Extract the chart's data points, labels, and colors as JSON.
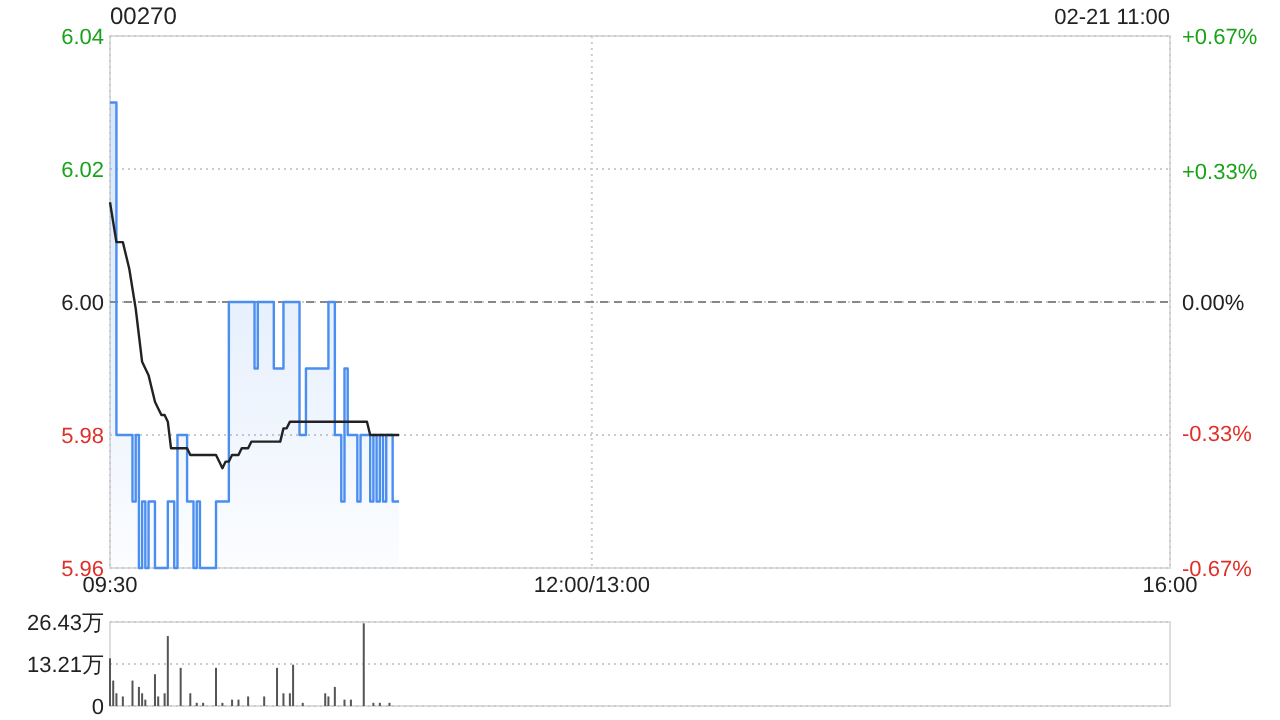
{
  "chart_data": [
    {
      "type": "area",
      "title": "00270",
      "subtitle": "02-21 11:00",
      "categories": [
        "09:30",
        null,
        null,
        null,
        null,
        null,
        null,
        null,
        null,
        null,
        null,
        null,
        null,
        null,
        null,
        null,
        null,
        null,
        null,
        null,
        null,
        null,
        null,
        null,
        null,
        null,
        null,
        null,
        null,
        null,
        null,
        null,
        null,
        null,
        null,
        null,
        null,
        null,
        null,
        null,
        null,
        null,
        null,
        null,
        null,
        null,
        null,
        null,
        null,
        null,
        null,
        null,
        null,
        null,
        null,
        null,
        null,
        null,
        null,
        null,
        null,
        null,
        null,
        null,
        null,
        null,
        null,
        null,
        null,
        null,
        null,
        null,
        null,
        null,
        null,
        null,
        null,
        null,
        null,
        null,
        null,
        null,
        null,
        null,
        null,
        null,
        null,
        null,
        null,
        null,
        null,
        null,
        null,
        null,
        null,
        null,
        null,
        null,
        null,
        null,
        null,
        null,
        null,
        null,
        null,
        null,
        null,
        null,
        null,
        null,
        null,
        null,
        null,
        null,
        null,
        null,
        null,
        null,
        null,
        null,
        null,
        null,
        null,
        null,
        null,
        null,
        null,
        null,
        null,
        null,
        null,
        null,
        null,
        null,
        null,
        null,
        null,
        null,
        null,
        null,
        null,
        null,
        null,
        null,
        null,
        null,
        null,
        null,
        null,
        null,
        "12:00/13:00",
        null,
        null,
        null,
        null,
        null,
        null,
        null,
        null,
        null,
        null,
        null,
        null,
        null,
        null,
        null,
        null,
        null,
        null,
        null,
        null,
        null,
        null,
        null,
        null,
        null,
        null,
        null,
        null,
        null,
        null,
        null,
        null,
        null,
        null,
        null,
        null,
        null,
        null,
        null,
        null,
        null,
        null,
        null,
        null,
        null,
        null,
        null,
        null,
        null,
        null,
        null,
        null,
        null,
        null,
        null,
        null,
        null,
        null,
        null,
        null,
        null,
        null,
        null,
        null,
        null,
        null,
        null,
        null,
        null,
        null,
        null,
        null,
        null,
        null,
        null,
        null,
        null,
        null,
        null,
        null,
        null,
        null,
        null,
        null,
        null,
        null,
        null,
        null,
        null,
        null,
        null,
        null,
        null,
        null,
        null,
        null,
        null,
        null,
        null,
        null,
        null,
        null,
        null,
        null,
        null,
        null,
        null,
        null,
        null,
        null,
        null,
        null,
        null,
        null,
        null,
        null,
        null,
        null,
        null,
        null,
        null,
        null,
        null,
        null,
        null,
        null,
        null,
        null,
        null,
        null,
        null,
        null,
        null,
        null,
        null,
        null,
        null,
        null,
        null,
        null,
        null,
        null,
        null,
        null,
        null,
        null,
        null,
        null,
        null,
        null,
        null,
        null,
        null,
        null,
        null,
        null,
        null,
        null,
        null,
        null,
        null,
        null,
        null,
        null,
        null,
        null,
        null,
        null,
        null,
        null,
        null,
        null,
        null,
        null,
        null,
        null,
        null,
        null,
        null,
        "16:00"
      ],
      "ylim": [
        5.96,
        6.04
      ],
      "yticks": [
        {
          "value": 5.96,
          "label": "5.96"
        },
        {
          "value": 5.98,
          "label": "5.98"
        },
        {
          "value": 6.0,
          "label": "6.00"
        },
        {
          "value": 6.02,
          "label": "6.02"
        },
        {
          "value": 6.04,
          "label": "6.04"
        }
      ],
      "y2lim": [
        -0.67,
        0.67
      ],
      "y2ticks": [
        {
          "value": -0.67,
          "label": "-0.67%"
        },
        {
          "value": -0.33,
          "label": "-0.33%"
        },
        {
          "value": 0,
          "label": "0.00%"
        },
        {
          "value": 0.33,
          "label": "+0.33%"
        },
        {
          "value": 0.67,
          "label": "+0.67%"
        }
      ],
      "grid": true,
      "ref_lines": [
        {
          "axis": "y",
          "value": 6.0,
          "color": "#888888",
          "line_style": "dashed"
        }
      ],
      "series": [
        {
          "color": "#4a8ef0",
          "values": [
            6.03,
            6.03,
            5.98,
            5.98,
            5.98,
            5.98,
            5.98,
            5.97,
            5.98,
            5.96,
            5.97,
            5.96,
            5.97,
            5.97,
            5.96,
            5.96,
            5.96,
            5.96,
            5.97,
            5.97,
            5.96,
            5.98,
            5.98,
            5.98,
            5.97,
            5.97,
            5.96,
            5.97,
            5.96,
            5.96,
            5.96,
            5.96,
            5.96,
            5.97,
            5.97,
            5.97,
            5.97,
            6.0,
            6.0,
            6.0,
            6.0,
            6.0,
            6.0,
            6.0,
            6.0,
            5.99,
            6.0,
            6.0,
            6.0,
            6.0,
            6.0,
            5.99,
            5.99,
            5.99,
            6.0,
            6.0,
            6.0,
            6.0,
            6.0,
            5.98,
            5.98,
            5.99,
            5.99,
            5.99,
            5.99,
            5.99,
            5.99,
            5.99,
            6.0,
            6.0,
            5.98,
            5.98,
            5.97,
            5.99,
            5.98,
            5.98,
            5.98,
            5.97,
            5.98,
            5.98,
            5.98,
            5.97,
            5.98,
            5.97,
            5.98,
            5.97,
            5.98,
            5.98,
            5.97,
            5.97,
            5.97,
            null,
            null,
            null,
            null,
            null,
            null,
            null,
            null,
            null,
            null,
            null,
            null,
            null,
            null,
            null,
            null,
            null,
            null,
            null,
            null,
            null,
            null,
            null,
            null,
            null,
            null,
            null,
            null,
            null,
            null,
            null,
            null,
            null,
            null,
            null,
            null,
            null,
            null,
            null,
            null,
            null,
            null,
            null,
            null,
            null,
            null,
            null,
            null,
            null,
            null,
            null,
            null,
            null,
            null,
            null,
            null,
            null,
            null,
            null,
            null,
            null,
            null,
            null,
            null,
            null,
            null,
            null,
            null,
            null,
            null,
            null,
            null,
            null,
            null,
            null,
            null,
            null,
            null,
            null,
            null,
            null,
            null,
            null,
            null,
            null,
            null,
            null,
            null,
            null,
            null,
            null,
            null,
            null,
            null,
            null,
            null,
            null,
            null,
            null,
            null,
            null,
            null,
            null,
            null,
            null,
            null,
            null,
            null,
            null,
            null,
            null,
            null,
            null,
            null,
            null,
            null,
            null,
            null,
            null,
            null,
            null,
            null,
            null,
            null,
            null,
            null,
            null,
            null,
            null,
            null,
            null,
            null,
            null,
            null,
            null,
            null,
            null,
            null,
            null,
            null,
            null,
            null,
            null,
            null,
            null,
            null,
            null,
            null,
            null,
            null,
            null,
            null,
            null,
            null,
            null,
            null,
            null,
            null,
            null,
            null,
            null,
            null,
            null,
            null,
            null,
            null,
            null,
            null,
            null,
            null,
            null,
            null,
            null,
            null,
            null,
            null,
            null,
            null,
            null,
            null,
            null,
            null,
            null,
            null,
            null,
            null,
            null,
            null,
            null,
            null,
            null,
            null,
            null,
            null,
            null,
            null,
            null,
            null,
            null,
            null,
            null,
            null,
            null,
            null,
            null,
            null,
            null,
            null,
            null,
            null,
            null,
            null,
            null,
            null,
            null,
            null,
            null,
            null,
            null,
            null,
            null,
            null,
            null,
            null,
            null,
            null,
            null,
            null,
            null,
            null,
            null,
            null,
            null,
            null,
            null,
            null,
            null,
            null,
            null,
            null
          ]
        },
        {
          "type": "line",
          "color": "#222222",
          "values": [
            6.015,
            6.012,
            6.009,
            6.009,
            6.009,
            6.007,
            6.005,
            6.002,
            5.999,
            5.995,
            5.991,
            5.99,
            5.989,
            5.987,
            5.985,
            5.984,
            5.983,
            5.983,
            5.982,
            5.978,
            5.978,
            5.978,
            5.978,
            5.978,
            5.978,
            5.977,
            5.977,
            5.977,
            5.977,
            5.977,
            5.977,
            5.977,
            5.977,
            5.977,
            5.976,
            5.975,
            5.976,
            5.976,
            5.977,
            5.977,
            5.977,
            5.978,
            5.978,
            5.978,
            5.979,
            5.979,
            5.979,
            5.979,
            5.979,
            5.979,
            5.979,
            5.979,
            5.979,
            5.979,
            5.981,
            5.981,
            5.982,
            5.982,
            5.982,
            5.982,
            5.982,
            5.982,
            5.982,
            5.982,
            5.982,
            5.982,
            5.982,
            5.982,
            5.982,
            5.982,
            5.982,
            5.982,
            5.982,
            5.982,
            5.982,
            5.982,
            5.982,
            5.982,
            5.982,
            5.982,
            5.982,
            5.98,
            5.98,
            5.98,
            5.98,
            5.98,
            5.98,
            5.98,
            5.98,
            5.98,
            5.98,
            null,
            null,
            null,
            null,
            null,
            null,
            null,
            null,
            null,
            null,
            null,
            null,
            null,
            null,
            null,
            null,
            null,
            null,
            null,
            null,
            null,
            null,
            null,
            null,
            null,
            null,
            null,
            null,
            null,
            null,
            null,
            null,
            null,
            null,
            null,
            null,
            null,
            null,
            null,
            null,
            null,
            null,
            null,
            null,
            null,
            null,
            null,
            null,
            null,
            null,
            null,
            null,
            null,
            null,
            null,
            null,
            null,
            null,
            null,
            null,
            null,
            null,
            null,
            null,
            null,
            null,
            null,
            null,
            null,
            null,
            null,
            null,
            null,
            null,
            null,
            null,
            null,
            null,
            null,
            null,
            null,
            null,
            null,
            null,
            null,
            null,
            null,
            null,
            null,
            null,
            null,
            null,
            null,
            null,
            null,
            null,
            null,
            null,
            null,
            null,
            null,
            null,
            null,
            null,
            null,
            null,
            null,
            null,
            null,
            null,
            null,
            null,
            null,
            null,
            null,
            null,
            null,
            null,
            null,
            null,
            null,
            null,
            null,
            null,
            null,
            null,
            null,
            null,
            null,
            null,
            null,
            null,
            null,
            null,
            null,
            null,
            null,
            null,
            null,
            null,
            null,
            null,
            null,
            null,
            null,
            null,
            null,
            null,
            null,
            null,
            null,
            null,
            null,
            null,
            null,
            null,
            null,
            null,
            null,
            null,
            null,
            null,
            null,
            null,
            null,
            null,
            null,
            null,
            null,
            null,
            null,
            null,
            null,
            null,
            null,
            null,
            null,
            null,
            null,
            null,
            null,
            null,
            null,
            null,
            null,
            null,
            null,
            null,
            null,
            null,
            null,
            null,
            null,
            null,
            null,
            null,
            null,
            null,
            null,
            null,
            null,
            null,
            null,
            null,
            null,
            null,
            null,
            null,
            null,
            null,
            null,
            null,
            null,
            null,
            null,
            null,
            null,
            null,
            null,
            null,
            null,
            null,
            null,
            null,
            null,
            null,
            null,
            null,
            null,
            null,
            null,
            null,
            null,
            null,
            null,
            null,
            null,
            null,
            null,
            null
          ]
        }
      ]
    },
    {
      "type": "bar",
      "ylim": [
        0,
        26.43
      ],
      "yticks": [
        0,
        {
          "value": 13.21,
          "label": "13.21万"
        },
        {
          "value": 26.43,
          "label": "26.43万"
        }
      ],
      "grid": true,
      "categories": [
        null,
        null,
        null,
        null,
        null,
        null,
        null,
        null,
        null,
        null,
        null,
        null,
        null,
        null,
        null,
        null,
        null,
        null,
        null,
        null,
        null,
        null,
        null,
        null,
        null,
        null,
        null,
        null,
        null,
        null,
        null,
        null,
        null,
        null,
        null,
        null,
        null,
        null,
        null,
        null,
        null,
        null,
        null,
        null,
        null,
        null,
        null,
        null,
        null,
        null,
        null,
        null,
        null,
        null,
        null,
        null,
        null,
        null,
        null,
        null,
        null,
        null,
        null,
        null,
        null,
        null,
        null,
        null,
        null,
        null,
        null,
        null,
        null,
        null,
        null,
        null,
        null,
        null,
        null,
        null,
        null,
        null,
        null,
        null,
        null,
        null,
        null,
        null,
        null,
        null,
        null,
        null,
        null,
        null,
        null,
        null,
        null,
        null,
        null,
        null,
        null,
        null,
        null,
        null,
        null,
        null,
        null,
        null,
        null,
        null,
        null,
        null,
        null,
        null,
        null,
        null,
        null,
        null,
        null,
        null,
        null,
        null,
        null,
        null,
        null,
        null,
        null,
        null,
        null,
        null,
        null,
        null,
        null,
        null,
        null,
        null,
        null,
        null,
        null,
        null,
        null,
        null,
        null,
        null,
        null,
        null,
        null,
        null,
        null,
        null,
        null,
        null,
        null,
        null,
        null,
        null,
        null,
        null,
        null,
        null,
        null,
        null,
        null,
        null,
        null,
        null,
        null,
        null,
        null,
        null,
        null,
        null,
        null,
        null,
        null,
        null,
        null,
        null,
        null,
        null,
        null,
        null,
        null,
        null,
        null,
        null,
        null,
        null,
        null,
        null,
        null,
        null,
        null,
        null,
        null,
        null,
        null,
        null,
        null,
        null,
        null,
        null,
        null,
        null,
        null,
        null,
        null,
        null,
        null,
        null,
        null,
        null,
        null,
        null,
        null,
        null,
        null,
        null,
        null,
        null,
        null,
        null,
        null,
        null,
        null,
        null,
        null,
        null,
        null,
        null,
        null,
        null,
        null,
        null,
        null,
        null,
        null,
        null,
        null,
        null,
        null,
        null,
        null,
        null,
        null,
        null,
        null,
        null,
        null,
        null,
        null,
        null,
        null,
        null,
        null,
        null,
        null,
        null,
        null,
        null,
        null,
        null,
        null,
        null,
        null,
        null,
        null,
        null,
        null,
        null,
        null,
        null,
        null,
        null,
        null,
        null,
        null,
        null,
        null,
        null,
        null,
        null,
        null,
        null,
        null,
        null,
        null,
        null,
        null,
        null,
        null,
        null,
        null,
        null,
        null,
        null,
        null,
        null,
        null,
        null,
        null,
        null,
        null,
        null,
        null,
        null,
        null,
        null,
        null,
        null,
        null,
        null,
        null,
        null,
        null,
        null,
        null,
        null,
        null,
        null,
        null,
        null,
        null,
        null,
        null,
        null,
        null,
        null,
        null,
        null,
        null
      ],
      "series": [
        {
          "color": "#555555",
          "values": [
            15,
            8,
            4,
            null,
            3,
            null,
            null,
            8,
            null,
            6,
            4,
            2,
            null,
            null,
            10,
            3,
            null,
            4,
            22,
            null,
            null,
            null,
            12,
            null,
            null,
            4,
            null,
            1,
            null,
            1,
            null,
            null,
            null,
            12,
            null,
            1,
            null,
            null,
            2,
            null,
            2,
            null,
            null,
            3,
            null,
            null,
            null,
            null,
            3,
            null,
            null,
            null,
            12,
            null,
            4,
            null,
            4,
            13,
            null,
            null,
            1,
            null,
            null,
            null,
            null,
            null,
            null,
            4,
            3,
            null,
            6,
            null,
            null,
            2,
            null,
            2,
            null,
            null,
            null,
            26,
            null,
            null,
            1,
            null,
            1,
            null,
            null,
            1,
            null,
            null,
            null,
            null,
            null,
            null,
            null,
            null,
            null,
            null,
            null,
            null,
            null,
            null,
            null,
            null,
            null,
            null,
            null,
            null,
            null,
            null,
            null,
            null,
            null,
            null,
            null,
            null,
            null,
            null,
            null,
            null,
            null,
            null,
            null,
            null,
            null,
            null,
            null,
            null,
            null,
            null,
            null,
            null,
            null,
            null,
            null,
            null,
            null,
            null,
            null,
            null,
            null,
            null,
            null,
            null,
            null,
            null,
            null,
            null,
            null,
            null,
            null,
            null,
            null,
            null,
            null,
            null,
            null,
            null,
            null,
            null,
            null,
            null,
            null,
            null,
            null,
            null,
            null,
            null,
            null,
            null,
            null,
            null,
            null,
            null,
            null,
            null,
            null,
            null,
            null,
            null,
            null,
            null,
            null,
            null,
            null,
            null,
            null,
            null,
            null,
            null,
            null,
            null,
            null,
            null,
            null,
            null,
            null,
            null,
            null,
            null,
            null,
            null,
            null,
            null,
            null,
            null,
            null,
            null,
            null,
            null,
            null,
            null,
            null,
            null,
            null,
            null,
            null,
            null,
            null,
            null,
            null,
            null,
            null,
            null,
            null,
            null,
            null,
            null,
            null,
            null,
            null,
            null,
            null,
            null,
            null,
            null,
            null,
            null,
            null,
            null,
            null,
            null,
            null,
            null,
            null,
            null,
            null,
            null,
            null,
            null,
            null,
            null,
            null,
            null,
            null,
            null,
            null,
            null,
            null,
            null,
            null,
            null,
            null,
            null,
            null,
            null,
            null,
            null,
            null,
            null,
            null,
            null,
            null,
            null,
            null,
            null,
            null,
            null,
            null,
            null,
            null,
            null,
            null,
            null,
            null,
            null,
            null,
            null,
            null,
            null,
            null,
            null,
            null,
            null,
            null,
            null,
            null,
            null,
            null,
            null,
            null,
            null,
            null,
            null,
            null,
            null,
            null,
            null,
            null,
            null,
            null,
            null,
            null,
            null,
            null,
            null,
            null,
            null,
            null,
            null,
            null,
            null,
            null,
            null,
            null,
            null,
            null,
            null,
            null,
            null,
            null
          ]
        }
      ]
    }
  ]
}
